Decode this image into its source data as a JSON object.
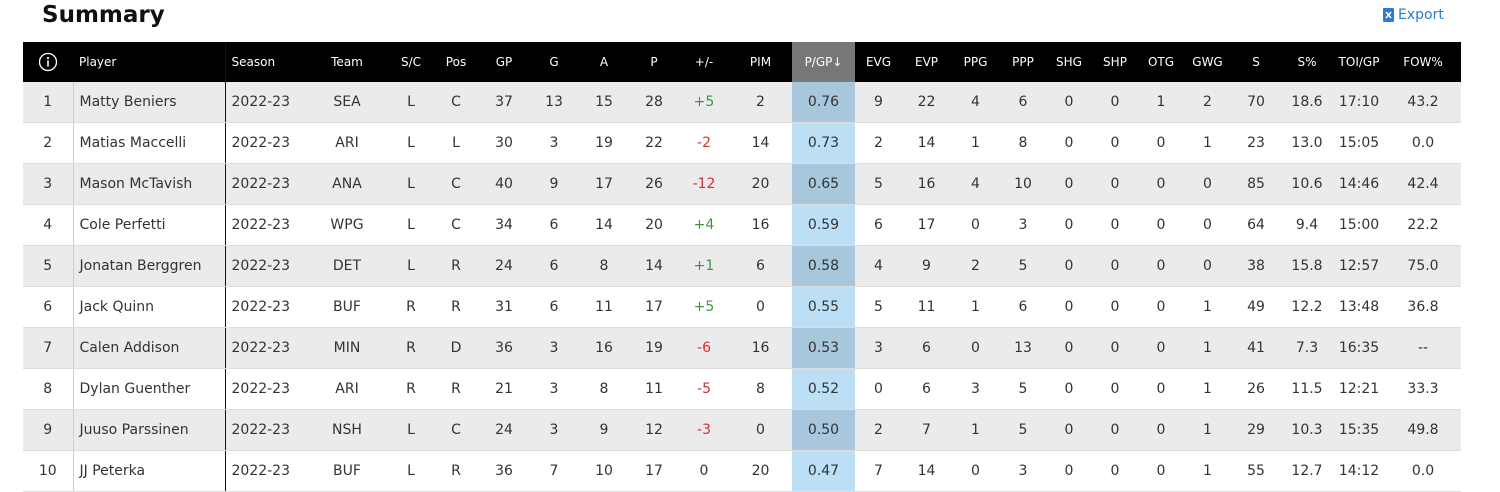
{
  "header": {
    "title": "Summary",
    "export": "Export"
  },
  "table": {
    "columns": [
      "Player",
      "Season",
      "Team",
      "S/C",
      "Pos",
      "GP",
      "G",
      "A",
      "P",
      "+/-",
      "PIM",
      "P/GP↓",
      "EVG",
      "EVP",
      "PPG",
      "PPP",
      "SHG",
      "SHP",
      "OTG",
      "GWG",
      "S",
      "S%",
      "TOI/GP",
      "FOW%"
    ],
    "rows": [
      [
        "1",
        "Matty Beniers",
        "2022-23",
        "SEA",
        "L",
        "C",
        "37",
        "13",
        "15",
        "28",
        "+5",
        "2",
        "0.76",
        "9",
        "22",
        "4",
        "6",
        "0",
        "0",
        "1",
        "2",
        "70",
        "18.6",
        "17:10",
        "43.2"
      ],
      [
        "2",
        "Matias Maccelli",
        "2022-23",
        "ARI",
        "L",
        "L",
        "30",
        "3",
        "19",
        "22",
        "-2",
        "14",
        "0.73",
        "2",
        "14",
        "1",
        "8",
        "0",
        "0",
        "0",
        "1",
        "23",
        "13.0",
        "15:05",
        "0.0"
      ],
      [
        "3",
        "Mason McTavish",
        "2022-23",
        "ANA",
        "L",
        "C",
        "40",
        "9",
        "17",
        "26",
        "-12",
        "20",
        "0.65",
        "5",
        "16",
        "4",
        "10",
        "0",
        "0",
        "0",
        "0",
        "85",
        "10.6",
        "14:46",
        "42.4"
      ],
      [
        "4",
        "Cole Perfetti",
        "2022-23",
        "WPG",
        "L",
        "C",
        "34",
        "6",
        "14",
        "20",
        "+4",
        "16",
        "0.59",
        "6",
        "17",
        "0",
        "3",
        "0",
        "0",
        "0",
        "0",
        "64",
        "9.4",
        "15:00",
        "22.2"
      ],
      [
        "5",
        "Jonatan Berggren",
        "2022-23",
        "DET",
        "L",
        "R",
        "24",
        "6",
        "8",
        "14",
        "+1",
        "6",
        "0.58",
        "4",
        "9",
        "2",
        "5",
        "0",
        "0",
        "0",
        "0",
        "38",
        "15.8",
        "12:57",
        "75.0"
      ],
      [
        "6",
        "Jack Quinn",
        "2022-23",
        "BUF",
        "R",
        "R",
        "31",
        "6",
        "11",
        "17",
        "+5",
        "0",
        "0.55",
        "5",
        "11",
        "1",
        "6",
        "0",
        "0",
        "0",
        "1",
        "49",
        "12.2",
        "13:48",
        "36.8"
      ],
      [
        "7",
        "Calen Addison",
        "2022-23",
        "MIN",
        "R",
        "D",
        "36",
        "3",
        "16",
        "19",
        "-6",
        "16",
        "0.53",
        "3",
        "6",
        "0",
        "13",
        "0",
        "0",
        "0",
        "1",
        "41",
        "7.3",
        "16:35",
        "--"
      ],
      [
        "8",
        "Dylan Guenther",
        "2022-23",
        "ARI",
        "R",
        "R",
        "21",
        "3",
        "8",
        "11",
        "-5",
        "8",
        "0.52",
        "0",
        "6",
        "3",
        "5",
        "0",
        "0",
        "0",
        "1",
        "26",
        "11.5",
        "12:21",
        "33.3"
      ],
      [
        "9",
        "Juuso Parssinen",
        "2022-23",
        "NSH",
        "L",
        "C",
        "24",
        "3",
        "9",
        "12",
        "-3",
        "0",
        "0.50",
        "2",
        "7",
        "1",
        "5",
        "0",
        "0",
        "0",
        "1",
        "29",
        "10.3",
        "15:35",
        "49.8"
      ],
      [
        "10",
        "JJ Peterka",
        "2022-23",
        "BUF",
        "L",
        "R",
        "36",
        "7",
        "10",
        "17",
        "0",
        "20",
        "0.47",
        "7",
        "14",
        "0",
        "3",
        "0",
        "0",
        "0",
        "1",
        "55",
        "12.7",
        "14:12",
        "0.0"
      ]
    ]
  }
}
